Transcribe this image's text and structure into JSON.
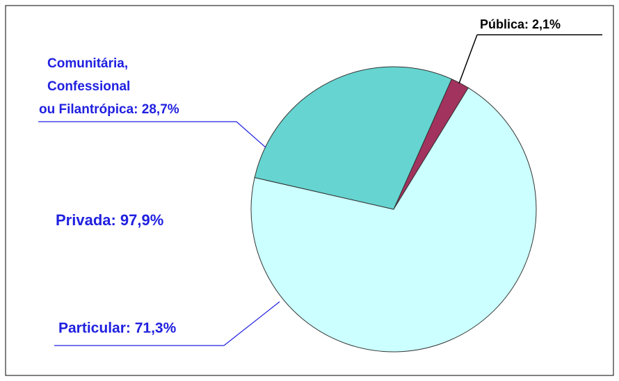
{
  "chart_data": {
    "type": "pie",
    "slices": [
      {
        "name": "Pública",
        "value": 2.1,
        "label": "Pública: 2,1%",
        "color": "#a2325e"
      },
      {
        "name": "Privada",
        "value": 97.9,
        "label": "Privada: 97,9%",
        "parts": [
          {
            "value": 28.7,
            "label_lines": [
              "Comunitária,",
              "Confessional",
              "ou Filantrópica: 28,7%"
            ],
            "color": "#66d4d0"
          },
          {
            "value": 71.3,
            "label": "Particular: 71,3%",
            "color": "#ccffff"
          }
        ]
      }
    ]
  }
}
